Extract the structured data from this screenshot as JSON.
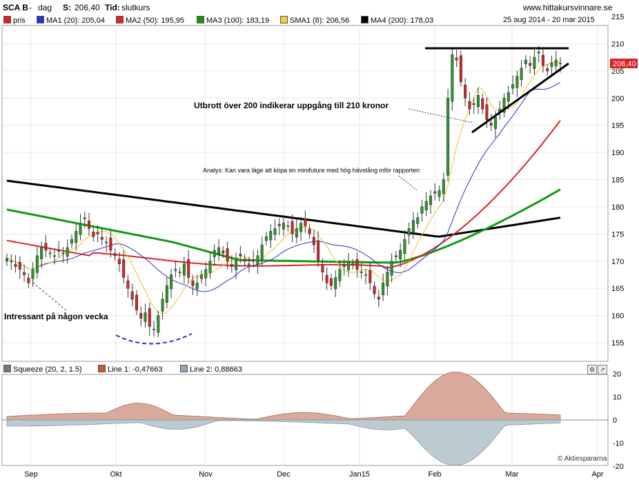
{
  "header": {
    "symbol": "SCA B",
    "period_sep": "-",
    "period": "dag",
    "last_label": "S:",
    "last_value": "206,40",
    "time_label": "Tid:",
    "time_value": "slutkurs",
    "site": "www.hittakursvinnare.se",
    "date_range": "25 aug 2014 - 20 mar 2015"
  },
  "legend": [
    {
      "label": "pris",
      "color": "#dd2222"
    },
    {
      "label": "MA1 (20): 205,04",
      "color": "#2233cc"
    },
    {
      "label": "MA2 (50): 195,95",
      "color": "#dd2222"
    },
    {
      "label": "MA3 (100): 183,19",
      "color": "#119911"
    },
    {
      "label": "SMA1 (8): 206,56",
      "color": "#f0d040"
    },
    {
      "label": "MA4 (200): 178,03",
      "color": "#000000"
    }
  ],
  "indicator_legend": [
    {
      "label": "Squeeze (20, 2, 1.5)",
      "color": "#777777"
    },
    {
      "label": "Line 1: -0,47663",
      "color": "#cc5533"
    },
    {
      "label": "Line 2: 0,88663",
      "color": "#90a8b8"
    }
  ],
  "annotations": {
    "breakout": "Utbrott över 200 indikerar uppgång till 210 kronor",
    "analysis": "Analys: Kan vara läge att köpa en minifuture med hög hävstång inför rapporten",
    "interesting": "Intressant på någon vecka"
  },
  "price_tag": "206,40",
  "copyright": "© Aktiespararna",
  "colors": {
    "up": "#2a9a2a",
    "down": "#dd2222",
    "ma20": "#2233cc",
    "ma50": "#dd2222",
    "ma100": "#119911",
    "sma8": "#f0c020",
    "ma200": "#000000",
    "grid": "#e6e6e6",
    "squeeze_pos": "#d9aa9c",
    "squeeze_neg": "#bccbd2"
  },
  "chart_data": {
    "type": "candlestick",
    "x_axis_labels": [
      "Sep",
      "Okt",
      "Nov",
      "Dec",
      "Jan15",
      "Feb",
      "Mar",
      "Apr"
    ],
    "price_axis": {
      "min": 155,
      "max": 215,
      "ticks": [
        155,
        160,
        165,
        170,
        175,
        180,
        185,
        190,
        195,
        200,
        205,
        210,
        215
      ]
    },
    "indicator_axis": {
      "min": -20,
      "max": 20,
      "ticks": [
        -20,
        -10,
        0,
        10,
        20
      ]
    },
    "approx_daily_closes": [
      170.5,
      170.0,
      169.0,
      168.5,
      167.5,
      166.0,
      168.5,
      171.0,
      172.5,
      172.0,
      171.5,
      171.0,
      172.0,
      171.5,
      172.5,
      174.0,
      175.5,
      177.0,
      178.0,
      176.0,
      174.5,
      175.0,
      174.0,
      173.5,
      172.0,
      171.0,
      169.5,
      167.0,
      165.0,
      163.0,
      161.0,
      159.5,
      160.5,
      158.0,
      157.5,
      160.0,
      163.0,
      165.5,
      167.5,
      168.5,
      168.0,
      169.5,
      167.0,
      165.5,
      166.0,
      167.5,
      168.5,
      170.0,
      172.0,
      172.5,
      171.5,
      170.0,
      169.0,
      170.5,
      171.0,
      170.0,
      169.5,
      170.0,
      171.0,
      173.0,
      174.5,
      175.5,
      176.0,
      176.5,
      177.0,
      176.5,
      175.0,
      176.0,
      177.0,
      176.5,
      175.0,
      173.0,
      170.0,
      168.0,
      166.0,
      165.5,
      167.0,
      168.5,
      169.0,
      170.0,
      169.5,
      168.5,
      168.0,
      167.5,
      166.0,
      164.0,
      163.0,
      166.0,
      168.0,
      170.0,
      171.0,
      172.0,
      174.0,
      176.0,
      177.5,
      178.0,
      180.0,
      181.0,
      182.0,
      182.5,
      183.0,
      185.0,
      200.0,
      208.0,
      207.0,
      203.0,
      200.0,
      198.0,
      199.0,
      200.5,
      198.0,
      196.0,
      195.0,
      196.5,
      198.0,
      200.0,
      201.0,
      202.5,
      204.0,
      205.5,
      207.0,
      206.0,
      207.5,
      208.5,
      206.0,
      205.0,
      206.5,
      207.0,
      206.4
    ],
    "series": [
      {
        "name": "pris"
      },
      {
        "name": "MA1 (20)",
        "last": 205.04
      },
      {
        "name": "MA2 (50)",
        "last": 195.95
      },
      {
        "name": "MA3 (100)",
        "last": 183.19
      },
      {
        "name": "SMA1 (8)",
        "last": 206.56
      },
      {
        "name": "MA4 (200)",
        "last": 178.03
      }
    ],
    "trend_lines": [
      {
        "from": [
          "Feb",
          209.5
        ],
        "to": [
          "Mar end",
          209.5
        ]
      },
      {
        "from": [
          "Feb mid",
          194
        ],
        "to": [
          "Mar end",
          206
        ]
      }
    ],
    "last_close": 206.4
  }
}
